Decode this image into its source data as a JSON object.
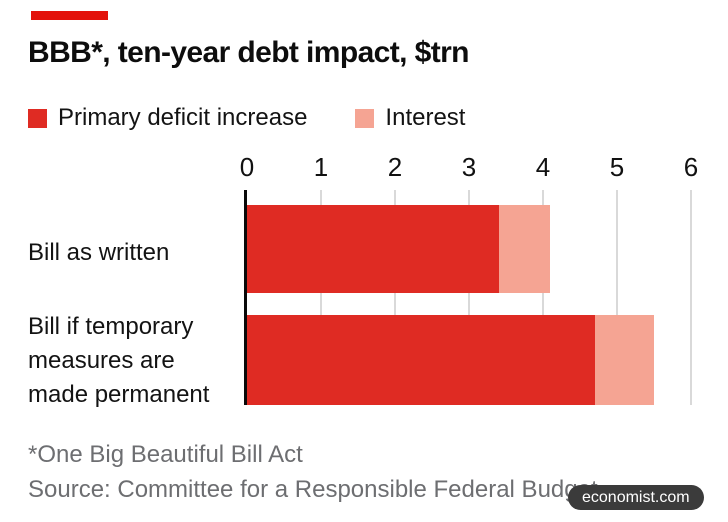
{
  "brand": {
    "tab_color": "#E3120B",
    "badge_label": "economist.com",
    "badge_bg": "#3B3B3B"
  },
  "title": "BBB*, ten-year debt impact, $trn",
  "legend": [
    {
      "label": "Primary deficit increase",
      "color": "#DF2B23"
    },
    {
      "label": "Interest",
      "color": "#F5A493"
    }
  ],
  "chart_data": {
    "type": "bar",
    "orientation": "horizontal",
    "stacked": true,
    "title": "BBB*, ten-year debt impact, $trn",
    "xlabel": "",
    "ylabel": "",
    "xlim": [
      0,
      6
    ],
    "xticks": [
      0,
      1,
      2,
      3,
      4,
      5,
      6
    ],
    "grid": true,
    "gridline_color": "#D9D9D9",
    "axis_color": "#0A0A0A",
    "legend_position": "top",
    "categories": [
      "Bill as written",
      "Bill if temporary measures are made permanent"
    ],
    "series": [
      {
        "name": "Primary deficit increase",
        "color": "#DF2B23",
        "values": [
          3.4,
          4.7
        ]
      },
      {
        "name": "Interest",
        "color": "#F5A493",
        "values": [
          0.7,
          0.8
        ]
      }
    ],
    "totals": [
      4.1,
      5.5
    ],
    "units": "$trn"
  },
  "footnote": "*One Big Beautiful Bill Act",
  "source": "Source: Committee for a Responsible Federal Budget"
}
